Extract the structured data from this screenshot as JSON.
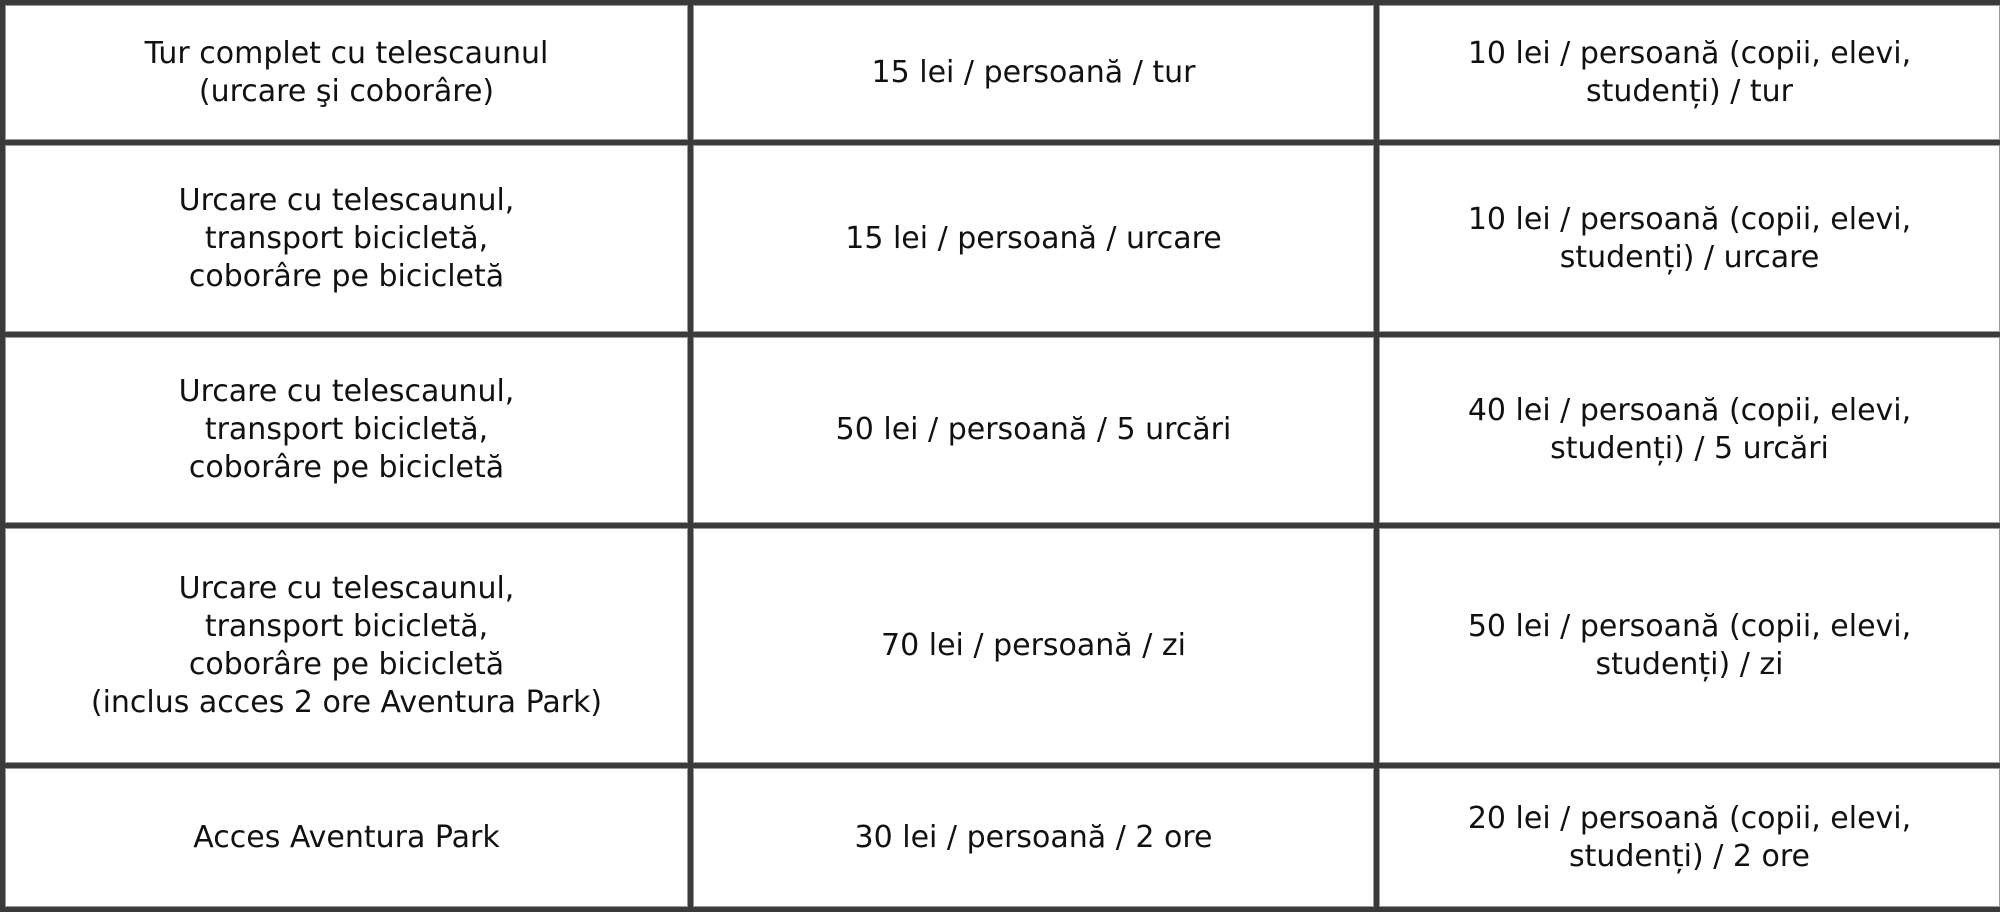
{
  "rows": [
    {
      "service": "Tur complet cu telescaunul\n(urcare şi coborâre)",
      "price": "15 lei / persoană / tur",
      "reduced": "10 lei / persoană (copii, elevi,\nstudenți) / tur"
    },
    {
      "service": "Urcare cu telescaunul,\ntransport bicicletă,\ncoborâre pe bicicletă",
      "price": "15 lei / persoană / urcare",
      "reduced": "10 lei / persoană (copii, elevi,\nstudenți) / urcare"
    },
    {
      "service": "Urcare cu telescaunul,\ntransport bicicletă,\ncoborâre pe bicicletă",
      "price": "50 lei / persoană / 5 urcări",
      "reduced": "40 lei / persoană (copii, elevi,\nstudenți) / 5 urcări"
    },
    {
      "service": "Urcare cu telescaunul,\ntransport bicicletă,\ncoborâre pe bicicletă\n(inclus acces 2 ore Aventura Park)",
      "price": "70 lei / persoană / zi",
      "reduced": "50 lei / persoană (copii, elevi,\nstudenți) / zi"
    },
    {
      "service": "Acces Aventura Park",
      "price": "30 lei / persoană / 2 ore",
      "reduced": "20 lei / persoană (copii, elevi,\nstudenți) / 2 ore"
    }
  ]
}
